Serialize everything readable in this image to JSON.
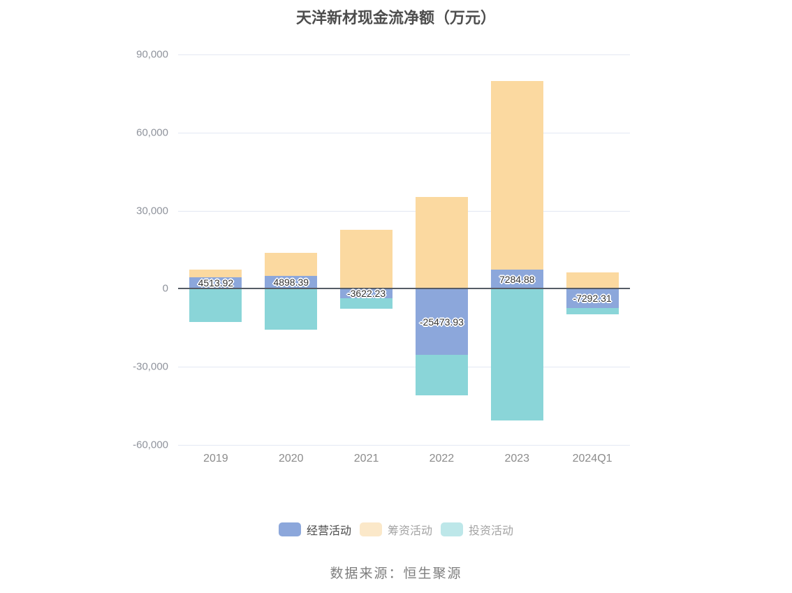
{
  "title": "天洋新材现金流净额（万元）",
  "source": "数据来源：恒生聚源",
  "legend": [
    {
      "key": "operating",
      "label": "经营活动",
      "swatch_color": "#8ca7db",
      "text_color": "#4a4a4a"
    },
    {
      "key": "financing",
      "label": "筹资活动",
      "swatch_color": "#fbe8c9",
      "text_color": "#a3a3a3"
    },
    {
      "key": "investing",
      "label": "投资活动",
      "swatch_color": "#bde7e9",
      "text_color": "#a3a3a3"
    }
  ],
  "chart_data": {
    "type": "bar",
    "stacked": true,
    "title": "天洋新材现金流净额（万元）",
    "categories": [
      "2019",
      "2020",
      "2021",
      "2022",
      "2023",
      "2024Q1"
    ],
    "series": [
      {
        "key": "operating",
        "name": "经营活动",
        "color": "#8ca7db",
        "values": [
          4513.92,
          4898.39,
          -3622.23,
          -25473.93,
          7284.88,
          -7292.31
        ],
        "labels": [
          "4513.92",
          "4898.39",
          "-3622.23",
          "-25473.93",
          "7284.88",
          "-7292.31"
        ]
      },
      {
        "key": "financing",
        "name": "筹资活动",
        "color": "#fbd9a0",
        "values": [
          2800,
          9000,
          22700,
          35200,
          72500,
          6200
        ]
      },
      {
        "key": "investing",
        "name": "投资活动",
        "color": "#8ad5d8",
        "values": [
          -12800,
          -15600,
          -4100,
          -15500,
          -50600,
          -2400
        ]
      }
    ],
    "xlabel": "",
    "ylabel": "",
    "ylim": [
      -60000,
      90000
    ],
    "yticks": [
      90000,
      60000,
      30000,
      0,
      -30000,
      -60000
    ],
    "ytick_labels": [
      "90,000",
      "60,000",
      "30,000",
      "0",
      "-30,000",
      "-60,000"
    ],
    "grid": true,
    "legend_position": "bottom",
    "label_series": "经营活动"
  }
}
